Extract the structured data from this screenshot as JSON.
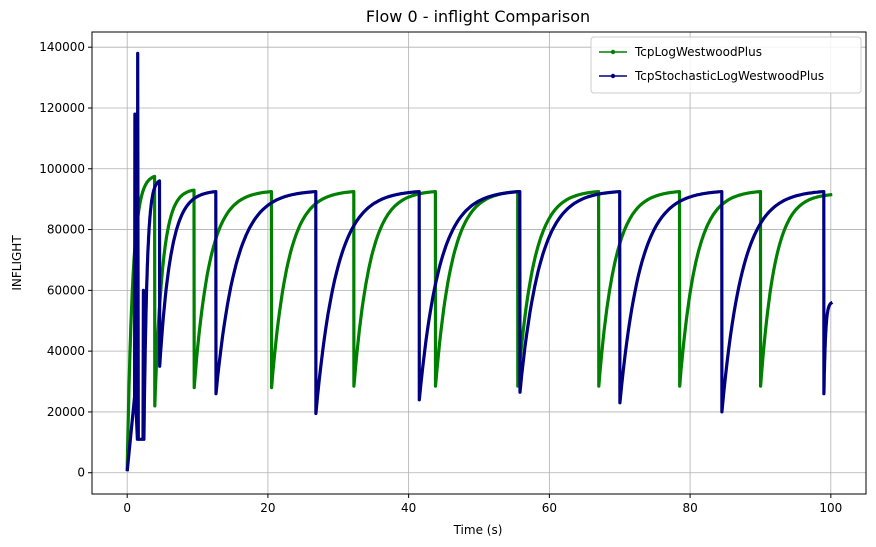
{
  "chart_data": {
    "type": "line",
    "title": "Flow 0 - inflight Comparison",
    "xlabel": "Time (s)",
    "ylabel": "INFLIGHT",
    "xlim": [
      -5,
      105
    ],
    "ylim": [
      -7000,
      145000
    ],
    "xticks": [
      0,
      20,
      40,
      60,
      80,
      100
    ],
    "yticks": [
      0,
      20000,
      40000,
      60000,
      80000,
      100000,
      120000,
      140000
    ],
    "xtick_labels": [
      "0",
      "20",
      "40",
      "60",
      "80",
      "100"
    ],
    "ytick_labels": [
      "0",
      "20000",
      "40000",
      "60000",
      "80000",
      "100000",
      "120000",
      "140000"
    ],
    "grid": true,
    "legend_position": "top-right",
    "series": [
      {
        "name": "TcpLogWestwoodPlus",
        "color": "#008000",
        "start": [
          0,
          500
        ],
        "drops": [
          {
            "t": 3.9,
            "peak": 97500,
            "low": 22000
          },
          {
            "t": 9.5,
            "peak": 93000,
            "low": 28000
          },
          {
            "t": 20.5,
            "peak": 92500,
            "low": 28000
          },
          {
            "t": 32.2,
            "peak": 92500,
            "low": 28500
          },
          {
            "t": 43.8,
            "peak": 92500,
            "low": 28500
          },
          {
            "t": 55.5,
            "peak": 92500,
            "low": 28500
          },
          {
            "t": 67.0,
            "peak": 92500,
            "low": 28500
          },
          {
            "t": 78.5,
            "peak": 92500,
            "low": 28500
          },
          {
            "t": 90.0,
            "peak": 92500,
            "low": 28500
          }
        ],
        "end": [
          100.2,
          91500
        ]
      },
      {
        "name": "TcpStochasticLogWestwoodPlus",
        "color": "#000080",
        "start": [
          0,
          500
        ],
        "spikes": [
          {
            "t": 1.1,
            "peak": 118000,
            "low": 25000
          },
          {
            "t": 1.5,
            "peak": 138000,
            "low": 11000
          },
          {
            "t": 2.3,
            "peak": 60000,
            "low": 11000
          }
        ],
        "drops": [
          {
            "t": 4.6,
            "peak": 96000,
            "low": 35000
          },
          {
            "t": 12.6,
            "peak": 92500,
            "low": 26000
          },
          {
            "t": 26.8,
            "peak": 92500,
            "low": 19500
          },
          {
            "t": 41.5,
            "peak": 92500,
            "low": 24000
          },
          {
            "t": 55.8,
            "peak": 92500,
            "low": 26500
          },
          {
            "t": 70.0,
            "peak": 92500,
            "low": 23000
          },
          {
            "t": 84.5,
            "peak": 92500,
            "low": 20000
          },
          {
            "t": 99.0,
            "peak": 92500,
            "low": 26000
          }
        ],
        "end": [
          100.2,
          56000
        ]
      }
    ]
  }
}
